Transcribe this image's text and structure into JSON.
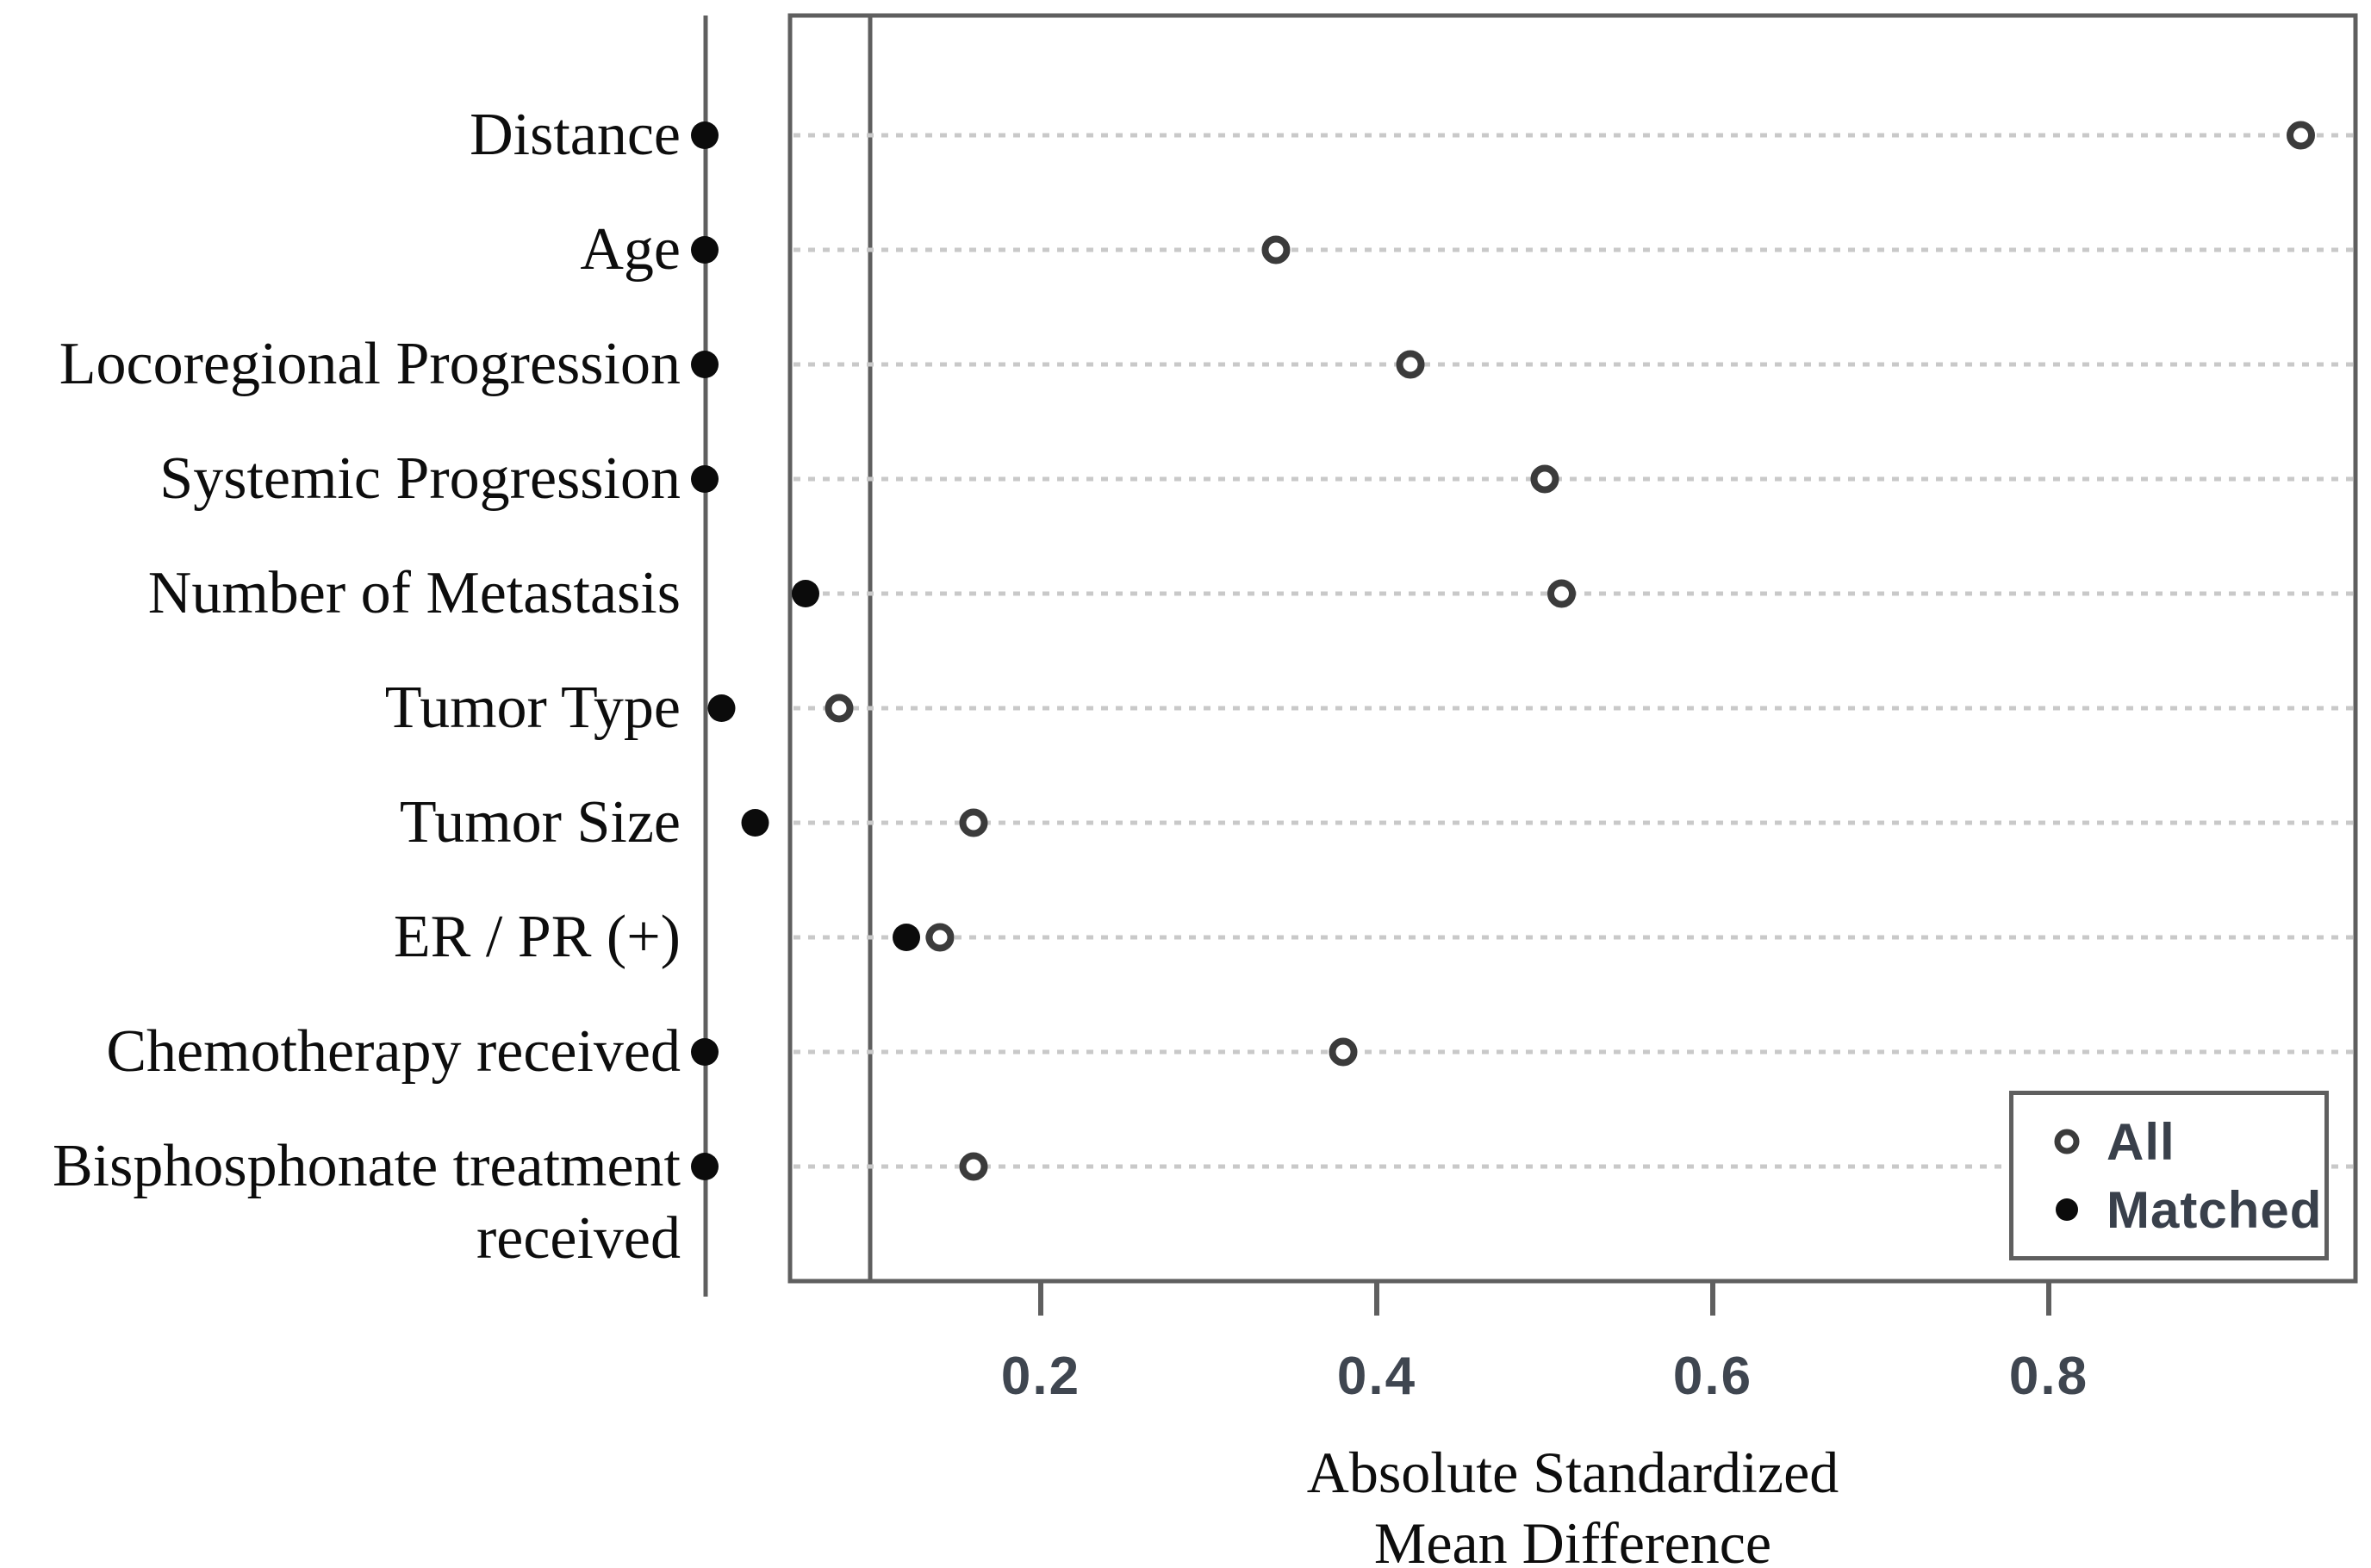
{
  "chart_data": {
    "type": "scatter",
    "subtype": "covariate-balance-love-plot",
    "categories": [
      "Distance",
      "Age",
      "Locoregional Progression",
      "Systemic Progression",
      "Number of Metastasis",
      "Tumor Type",
      "Tumor Size",
      "ER / PR (+)",
      "Chemotherapy received",
      "Bisphosphonate treatment\nreceived"
    ],
    "series": [
      {
        "name": "All",
        "marker": "open-circle",
        "values": [
          0.95,
          0.34,
          0.42,
          0.5,
          0.51,
          0.08,
          0.16,
          0.14,
          0.38,
          0.16
        ]
      },
      {
        "name": "Matched",
        "marker": "filled-circle",
        "values": [
          0.0,
          0.0,
          0.0,
          0.0,
          0.06,
          0.01,
          0.03,
          0.12,
          0.0,
          0.0
        ]
      }
    ],
    "xlabel": "Absolute Standardized Mean Difference",
    "xticks": [
      0.2,
      0.4,
      0.6,
      0.8
    ],
    "xtick_labels": [
      "0.2",
      "0.4",
      "0.6",
      "0.8"
    ],
    "xlim": [
      0,
      0.985
    ],
    "threshold_line": 0.1,
    "grid": "dotted-horizontal",
    "legend_position": "bottom-right"
  },
  "axis": {
    "title_line1": "Absolute Standardized",
    "title_line2": "Mean Difference"
  },
  "legend": {
    "items": [
      {
        "label": "All",
        "marker": "open-circle"
      },
      {
        "label": "Matched",
        "marker": "filled-circle"
      }
    ]
  },
  "colors": {
    "frame": "#5f5f5f",
    "grid": "#c9c9c9",
    "filled_point": "#0b0b0b",
    "open_point_ring": "#3b3b3b",
    "tick_text": "#3f4650",
    "label_text": "#0d0d0d"
  }
}
